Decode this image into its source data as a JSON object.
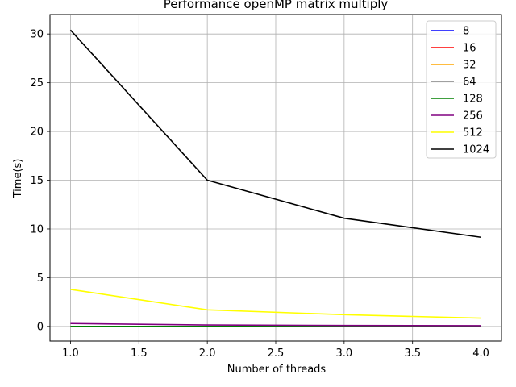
{
  "chart_data": {
    "type": "line",
    "title": "Performance openMP matrix multiply",
    "xlabel": "Number of threads",
    "ylabel": "Time(s)",
    "x": [
      1,
      2,
      3,
      4
    ],
    "xlim": [
      0.85,
      4.15
    ],
    "ylim": [
      -1.5,
      32.0
    ],
    "xticks": [
      1.0,
      1.5,
      2.0,
      2.5,
      3.0,
      3.5,
      4.0
    ],
    "xtick_labels": [
      "1.0",
      "1.5",
      "2.0",
      "2.5",
      "3.0",
      "3.5",
      "4.0"
    ],
    "yticks": [
      0,
      5,
      10,
      15,
      20,
      25,
      30
    ],
    "ytick_labels": [
      "0",
      "5",
      "10",
      "15",
      "20",
      "25",
      "30"
    ],
    "grid": true,
    "legend_position": "top-right",
    "series": [
      {
        "name": "8",
        "color": "#0000ff",
        "values": [
          0.0,
          0.0,
          0.0,
          0.0
        ]
      },
      {
        "name": "16",
        "color": "#ff0000",
        "values": [
          0.0,
          0.0,
          0.0,
          0.0
        ]
      },
      {
        "name": "32",
        "color": "#ffa500",
        "values": [
          0.0,
          0.0,
          0.0,
          0.0
        ]
      },
      {
        "name": "64",
        "color": "#808080",
        "values": [
          0.0,
          0.0,
          0.0,
          0.0
        ]
      },
      {
        "name": "128",
        "color": "#008000",
        "values": [
          0.01,
          0.01,
          0.01,
          0.01
        ]
      },
      {
        "name": "256",
        "color": "#800080",
        "values": [
          0.3,
          0.15,
          0.1,
          0.08
        ]
      },
      {
        "name": "512",
        "color": "#ffff00",
        "values": [
          3.8,
          1.7,
          1.2,
          0.85
        ]
      },
      {
        "name": "1024",
        "color": "#000000",
        "values": [
          30.4,
          15.0,
          11.1,
          9.15
        ]
      }
    ]
  }
}
